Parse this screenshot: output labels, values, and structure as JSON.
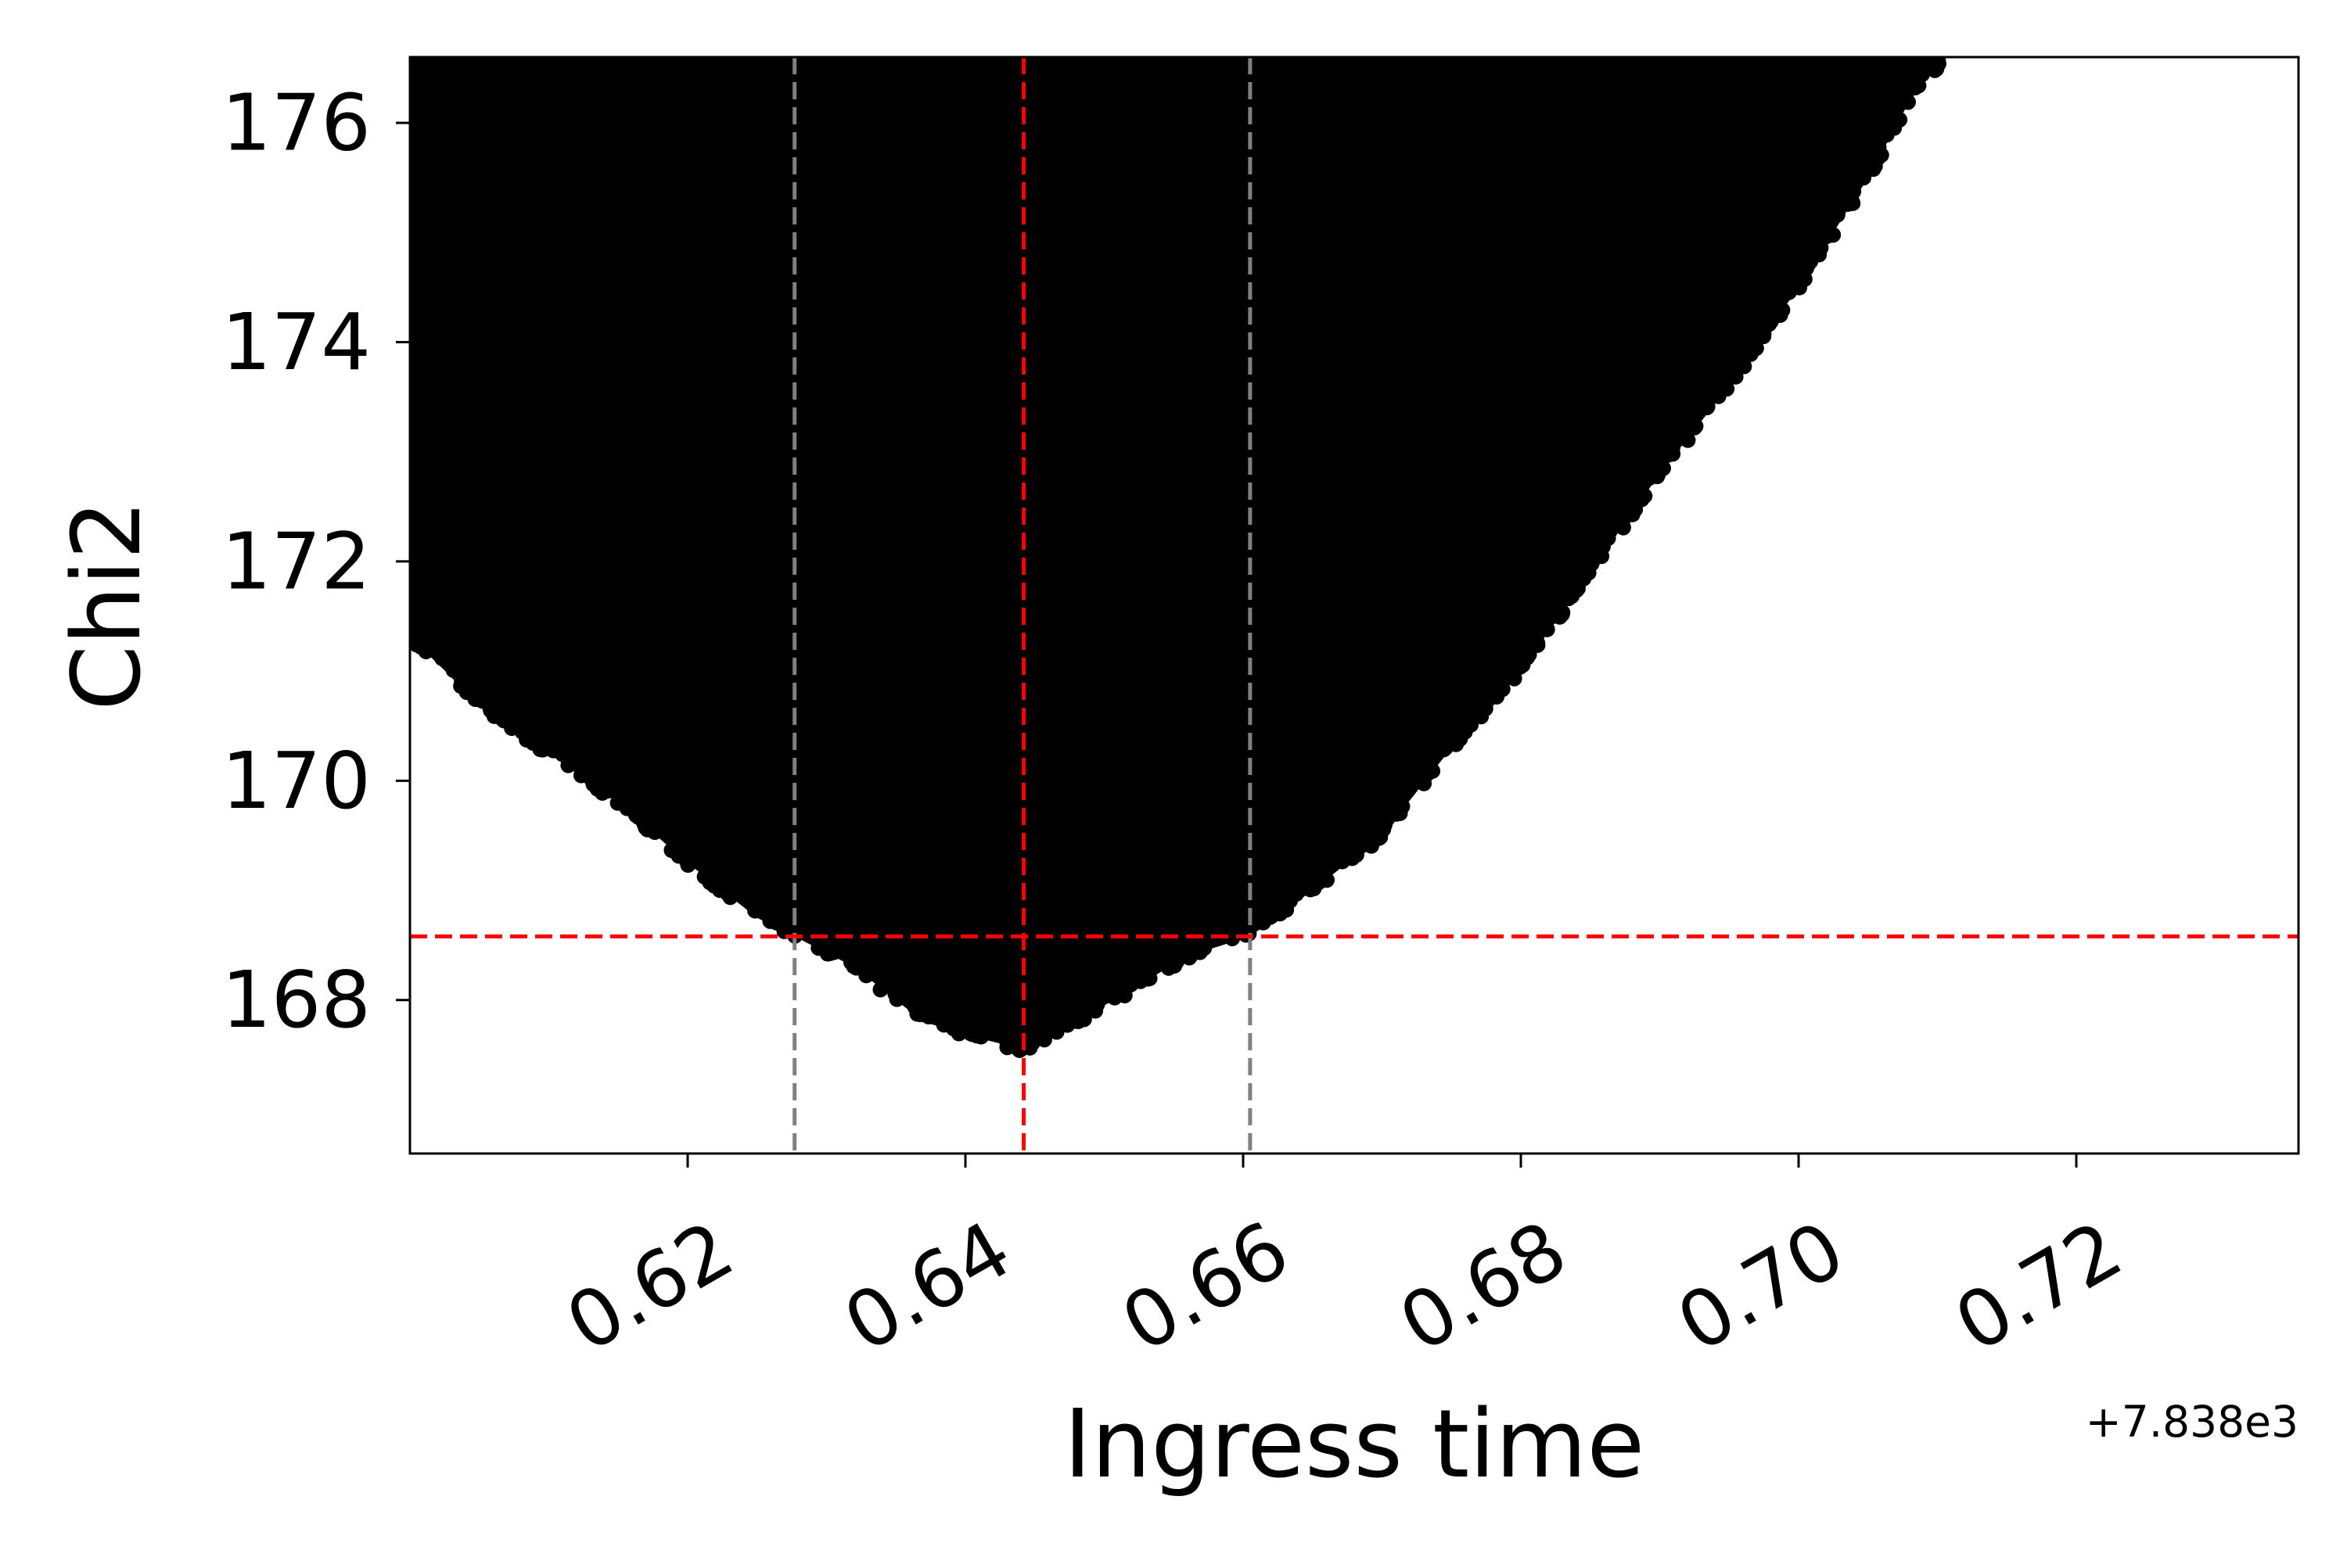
{
  "chart_data": {
    "type": "scatter",
    "xlabel": "Ingress time",
    "ylabel": "Chi2",
    "x_offset_label": "+7.838e3",
    "xlim": [
      0.6,
      0.736
    ],
    "ylim": [
      166.6,
      176.6
    ],
    "xticks": [
      0.62,
      0.64,
      0.66,
      0.68,
      0.7,
      0.72
    ],
    "xtick_labels": [
      "0.62",
      "0.64",
      "0.66",
      "0.68",
      "0.70",
      "0.72"
    ],
    "yticks": [
      168,
      170,
      172,
      174,
      176
    ],
    "ytick_labels": [
      "168",
      "170",
      "172",
      "174",
      "176"
    ],
    "grid": false,
    "marker_color": "#000000",
    "min_chi2": 167.55,
    "best_fit_time": 0.6442,
    "lower_bound_time": 0.6277,
    "upper_bound_time": 0.6605,
    "threshold_chi2": 168.58,
    "lower_envelope": [
      {
        "x": 0.6,
        "y": 171.4
      },
      {
        "x": 0.6005,
        "y": 171.25
      },
      {
        "x": 0.605,
        "y": 170.7
      },
      {
        "x": 0.61,
        "y": 170.25
      },
      {
        "x": 0.615,
        "y": 169.8
      },
      {
        "x": 0.62,
        "y": 169.25
      },
      {
        "x": 0.625,
        "y": 168.75
      },
      {
        "x": 0.6277,
        "y": 168.58
      },
      {
        "x": 0.632,
        "y": 168.3
      },
      {
        "x": 0.637,
        "y": 167.8
      },
      {
        "x": 0.641,
        "y": 167.65
      },
      {
        "x": 0.6442,
        "y": 167.55
      },
      {
        "x": 0.648,
        "y": 167.8
      },
      {
        "x": 0.652,
        "y": 168.1
      },
      {
        "x": 0.656,
        "y": 168.4
      },
      {
        "x": 0.6605,
        "y": 168.58
      },
      {
        "x": 0.665,
        "y": 169.0
      },
      {
        "x": 0.67,
        "y": 169.5
      },
      {
        "x": 0.675,
        "y": 170.3
      },
      {
        "x": 0.68,
        "y": 171.0
      },
      {
        "x": 0.685,
        "y": 171.9
      },
      {
        "x": 0.69,
        "y": 172.8
      },
      {
        "x": 0.695,
        "y": 173.6
      },
      {
        "x": 0.7,
        "y": 174.5
      },
      {
        "x": 0.705,
        "y": 175.5
      },
      {
        "x": 0.708,
        "y": 176.2
      },
      {
        "x": 0.7105,
        "y": 176.6
      }
    ],
    "reference_lines": [
      {
        "orientation": "vertical",
        "x": 0.6442,
        "color": "#ff0000",
        "style": "dashed"
      },
      {
        "orientation": "vertical",
        "x": 0.6277,
        "color": "#808080",
        "style": "dashed"
      },
      {
        "orientation": "vertical",
        "x": 0.6605,
        "color": "#808080",
        "style": "dashed"
      },
      {
        "orientation": "horizontal",
        "y": 168.58,
        "color": "#ff0000",
        "style": "dashed"
      }
    ]
  }
}
